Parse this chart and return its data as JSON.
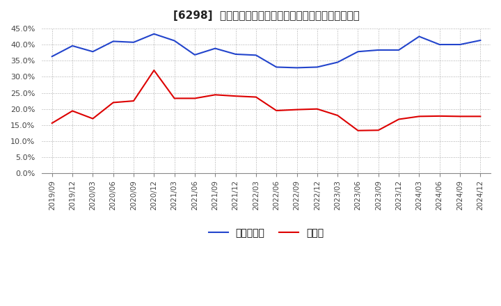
{
  "title": "[6298]  現預金、有利子負債の総資産に対する比率の推移",
  "ylim": [
    0.0,
    0.45
  ],
  "yticks": [
    0.0,
    0.05,
    0.1,
    0.15,
    0.2,
    0.25,
    0.3,
    0.35,
    0.4,
    0.45
  ],
  "background_color": "#ffffff",
  "plot_bg_color": "#ffffff",
  "grid_color": "#aaaaaa",
  "cash_color": "#dd0000",
  "debt_color": "#2244cc",
  "legend_cash": "現預金",
  "legend_debt": "有利子負債",
  "dates": [
    "2019/09",
    "2019/12",
    "2020/03",
    "2020/06",
    "2020/09",
    "2020/12",
    "2021/03",
    "2021/06",
    "2021/09",
    "2021/12",
    "2022/03",
    "2022/06",
    "2022/09",
    "2022/12",
    "2023/03",
    "2023/06",
    "2023/09",
    "2023/12",
    "2024/03",
    "2024/06",
    "2024/09",
    "2024/12"
  ],
  "cash": [
    0.156,
    0.194,
    0.17,
    0.22,
    0.225,
    0.32,
    0.233,
    0.233,
    0.244,
    0.24,
    0.237,
    0.195,
    0.198,
    0.2,
    0.18,
    0.133,
    0.134,
    0.168,
    0.177,
    0.178,
    0.177,
    0.177
  ],
  "debt": [
    0.363,
    0.396,
    0.378,
    0.41,
    0.407,
    0.433,
    0.412,
    0.368,
    0.388,
    0.37,
    0.367,
    0.33,
    0.328,
    0.33,
    0.345,
    0.378,
    0.383,
    0.383,
    0.425,
    0.4,
    0.4,
    0.413
  ]
}
